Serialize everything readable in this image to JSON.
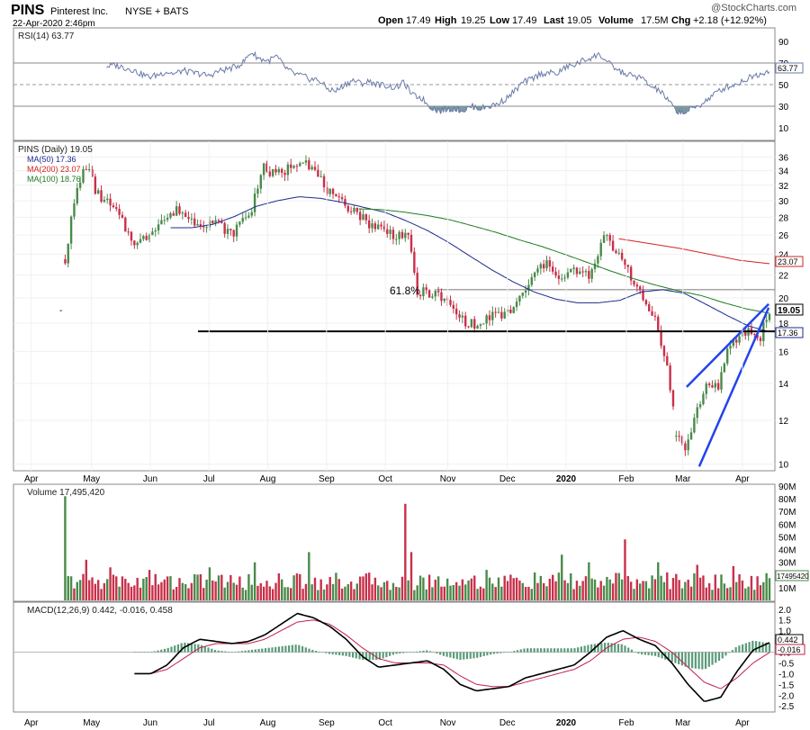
{
  "header": {
    "symbol": "PINS",
    "company": "Pinterest Inc.",
    "exchange": "NYSE + BATS",
    "datetime": "22-Apr-2020 2:46pm",
    "watermark": "@StockCharts.com",
    "open_label": "Open",
    "open": "17.49",
    "high_label": "High",
    "high": "19.25",
    "low_label": "Low",
    "low": "17.49",
    "last_label": "Last",
    "last": "19.05",
    "volume_label": "Volume",
    "volume": "17.5M",
    "chg_label": "Chg",
    "chg": "+2.18 (+12.92%)"
  },
  "colors": {
    "up": "#4a8a4a",
    "down": "#c8304a",
    "ma50": "#1c2a8c",
    "ma200": "#d02020",
    "ma100": "#1f7a1f",
    "wedge": "#2244ee",
    "support": "#000000",
    "macd": "#000000",
    "signal": "#c0204a",
    "hist": "#5a9a7a",
    "rsi": "#6a7aa8"
  },
  "chart_data": [
    {
      "type": "line",
      "panel": "rsi",
      "title": "RSI(14) 63.77",
      "label_tag": "63.77",
      "ylim": [
        0,
        100
      ],
      "yticks": [
        "90",
        "70",
        "50",
        "30",
        "10"
      ],
      "guides": [
        70,
        30
      ],
      "values": [
        67,
        68,
        66,
        64,
        60,
        57,
        59,
        62,
        60,
        63,
        61,
        60,
        58,
        62,
        64,
        66,
        70,
        80,
        74,
        72,
        76,
        66,
        60,
        58,
        55,
        54,
        46,
        44,
        50,
        54,
        51,
        53,
        50,
        49,
        47,
        52,
        40,
        38,
        30,
        26,
        27,
        28,
        26,
        30,
        28,
        30,
        32,
        37,
        44,
        52,
        55,
        60,
        61,
        60,
        66,
        68,
        72,
        75,
        78,
        70,
        64,
        60,
        58,
        56,
        48,
        45,
        36,
        26,
        24,
        28,
        32,
        38,
        44,
        48,
        50,
        54,
        58,
        60,
        63.77
      ]
    },
    {
      "type": "candlestick",
      "panel": "price",
      "title": "PINS (Daily) 19.05",
      "log_scale": true,
      "ylim": [
        9.8,
        38
      ],
      "yticks": [
        "36",
        "34",
        "32",
        "30",
        "28",
        "26",
        "24",
        "22",
        "20",
        "18",
        "16",
        "14",
        "12",
        "10"
      ],
      "x_labels": [
        "Apr",
        "May",
        "Jun",
        "Jul",
        "Aug",
        "Sep",
        "Oct",
        "Nov",
        "Dec",
        "2020",
        "Feb",
        "Mar",
        "Apr"
      ],
      "close": [
        23.5,
        30.5,
        35,
        31,
        29.8,
        28.5,
        26.3,
        25,
        26,
        27.5,
        28,
        29,
        27.7,
        27.4,
        27.5,
        27.1,
        26,
        27.5,
        28.8,
        34.5,
        33.5,
        33.7,
        35,
        36,
        34,
        32,
        30,
        29.5,
        28.9,
        27.5,
        27,
        26.4,
        26,
        26.2,
        20.4,
        20.5,
        20.2,
        19.5,
        18.5,
        18,
        17.7,
        18.6,
        18.5,
        19,
        20,
        21.5,
        23,
        22.8,
        21.5,
        22.5,
        22,
        22.2,
        26,
        24.5,
        23.5,
        21,
        19.5,
        18.3,
        15.4,
        11.3,
        10.7,
        12.5,
        14,
        13.8,
        16,
        17,
        17.5,
        16.8,
        19.05
      ],
      "last_tag": "19.05",
      "fib_label": "61.8%",
      "fib_level": 20.7,
      "support_level": 17.4,
      "support_tag": "17.36",
      "wedge_lower": [
        {
          "t": 0.9067,
          "v": 9.9
        },
        {
          "t": 0.9989,
          "v": 19.2
        }
      ],
      "wedge_upper": [
        {
          "t": 0.89,
          "v": 13.8
        },
        {
          "t": 0.9989,
          "v": 19.5
        }
      ],
      "series": [
        {
          "name": "MA(50) 17.36",
          "tag": "17.36",
          "values": [
            26.8,
            26.8,
            27.2,
            28.1,
            29.3,
            30.0,
            30.5,
            30.3,
            29.8,
            29.2,
            28.6,
            27.6,
            26.5,
            25.2,
            23.8,
            22.5,
            21.4,
            20.5,
            19.9,
            19.6,
            19.6,
            19.8,
            20.5,
            20.7,
            20.4,
            19.5,
            18.6,
            17.8,
            17.36
          ]
        },
        {
          "name": "MA(200) 23.07",
          "tag": "23.07",
          "values": [
            25.6,
            25.1,
            24.6,
            24.0,
            23.4,
            23.07
          ]
        },
        {
          "name": "MA(100) 18.76",
          "tag": "18.76",
          "values": [
            29.0,
            28.9,
            28.6,
            28.2,
            27.7,
            27.0,
            26.3,
            25.5,
            24.8,
            24.0,
            23.2,
            22.4,
            21.7,
            21.1,
            20.6,
            20.2,
            19.6,
            19.1,
            18.76
          ]
        }
      ]
    },
    {
      "type": "bar",
      "panel": "volume",
      "title": "Volume 17,495,420",
      "volume_tag": "17495420",
      "ylim": [
        0,
        90
      ],
      "yticks": [
        "90M",
        "80M",
        "70M",
        "60M",
        "50M",
        "40M",
        "30M",
        "20M",
        "10M"
      ],
      "spikes": [
        82,
        32,
        26,
        24,
        26,
        30,
        38,
        76,
        38,
        24,
        36,
        30,
        48,
        30,
        22,
        28,
        27,
        17.5
      ]
    },
    {
      "type": "line",
      "panel": "macd",
      "title": "MACD(12,26,9) 0.442, -0.016, 0.458",
      "macd_tag": "0.442",
      "signal_tag": "-0.016",
      "ylim": [
        -2.7,
        2.2
      ],
      "yticks": [
        "2.0",
        "1.5",
        "1.0",
        "0.5",
        "0.0",
        "-0.5",
        "-1.0",
        "-1.5",
        "-2.0",
        "-2.5"
      ],
      "x_labels": [
        "Apr",
        "May",
        "Jun",
        "Jul",
        "Aug",
        "Sep",
        "Oct",
        "Nov",
        "Dec",
        "2020",
        "Feb",
        "Mar",
        "Apr"
      ],
      "series": [
        {
          "name": "MACD",
          "values": [
            -1,
            -1,
            -0.6,
            0.2,
            0.6,
            0.5,
            0.4,
            0.5,
            0.8,
            1.3,
            1.8,
            1.6,
            1.2,
            0.6,
            -0.2,
            -0.7,
            -0.6,
            -0.5,
            -0.4,
            -0.8,
            -1.5,
            -1.8,
            -1.7,
            -1.6,
            -1.2,
            -1,
            -0.8,
            -0.6,
            0,
            0.7,
            1,
            0.6,
            0.3,
            -0.5,
            -1.5,
            -2.3,
            -2.1,
            -0.9,
            0.1,
            0.442
          ]
        },
        {
          "name": "Signal",
          "values": [
            -1,
            -1,
            -0.8,
            -0.3,
            0.2,
            0.4,
            0.4,
            0.4,
            0.6,
            1,
            1.4,
            1.5,
            1.3,
            0.8,
            0.2,
            -0.3,
            -0.5,
            -0.5,
            -0.5,
            -0.6,
            -1.1,
            -1.5,
            -1.6,
            -1.6,
            -1.4,
            -1.2,
            -1,
            -0.8,
            -0.4,
            0.2,
            0.6,
            0.7,
            0.5,
            0,
            -0.7,
            -1.4,
            -1.7,
            -1.2,
            -0.5,
            -0.016
          ]
        }
      ]
    }
  ]
}
